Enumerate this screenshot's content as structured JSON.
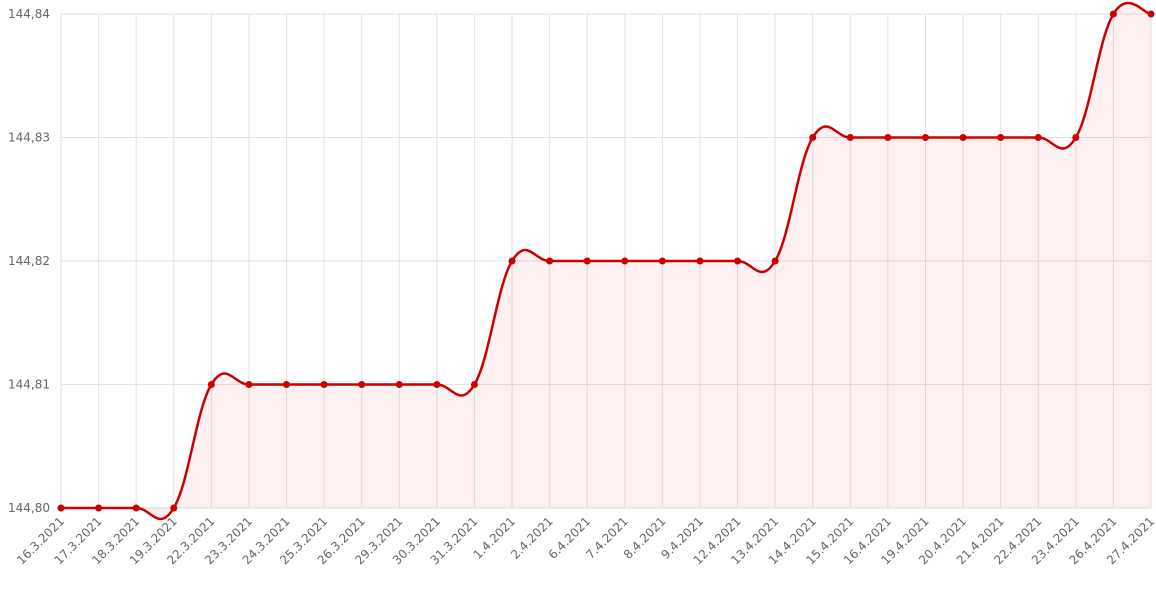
{
  "chart_data": {
    "type": "line",
    "categories": [
      "16.3.2021",
      "17.3.2021",
      "18.3.2021",
      "19.3.2021",
      "22.3.2021",
      "23.3.2021",
      "24.3.2021",
      "25.3.2021",
      "26.3.2021",
      "29.3.2021",
      "30.3.2021",
      "31.3.2021",
      "1.4.2021",
      "2.4.2021",
      "6.4.2021",
      "7.4.2021",
      "8.4.2021",
      "9.4.2021",
      "12.4.2021",
      "13.4.2021",
      "14.4.2021",
      "15.4.2021",
      "16.4.2021",
      "19.4.2021",
      "20.4.2021",
      "21.4.2021",
      "22.4.2021",
      "23.4.2021",
      "26.4.2021",
      "27.4.2021"
    ],
    "values": [
      144.8,
      144.8,
      144.8,
      144.8,
      144.81,
      144.81,
      144.81,
      144.81,
      144.81,
      144.81,
      144.81,
      144.81,
      144.82,
      144.82,
      144.82,
      144.82,
      144.82,
      144.82,
      144.82,
      144.82,
      144.83,
      144.83,
      144.83,
      144.83,
      144.83,
      144.83,
      144.83,
      144.83,
      144.84,
      144.84
    ],
    "color": "#cc0000",
    "ylim": [
      144.8,
      144.84
    ],
    "yticks": [
      {
        "value": 144.8,
        "label": "144,80"
      },
      {
        "value": 144.81,
        "label": "144,81"
      },
      {
        "value": 144.82,
        "label": "144,82"
      },
      {
        "value": 144.83,
        "label": "144,83"
      },
      {
        "value": 144.84,
        "label": "144,84"
      }
    ],
    "grid": true
  }
}
